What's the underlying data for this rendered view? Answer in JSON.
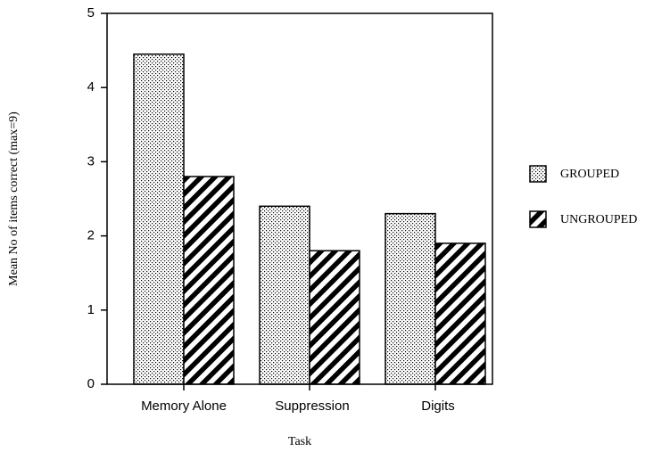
{
  "chart_data": {
    "type": "bar",
    "x_label": "Task",
    "y_label": "Mean No of items correct (max=9)",
    "categories": [
      "Memory  Alone",
      "Suppression",
      "Digits"
    ],
    "series": [
      {
        "name": "GROUPED",
        "color": "#000000",
        "pattern": "dots",
        "values": [
          4.45,
          2.4,
          2.3
        ]
      },
      {
        "name": "UNGROUPED",
        "color": "#000000",
        "pattern": "stripes",
        "values": [
          2.8,
          1.8,
          1.9
        ]
      }
    ],
    "ylim": [
      0,
      5
    ],
    "yticks": [
      0,
      1,
      2,
      3,
      4,
      5
    ],
    "grid": false,
    "legend": "right"
  }
}
